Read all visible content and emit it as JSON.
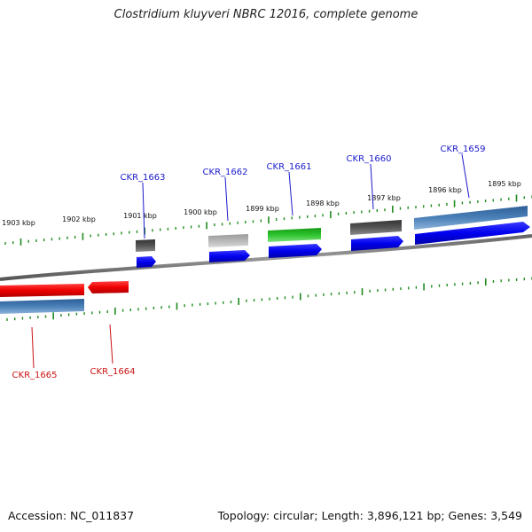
{
  "title": "Clostridium kluyveri NBRC 12016, complete genome",
  "footer": {
    "accession": "Accession: NC_011837",
    "stats": "Topology: circular; Length: 3,896,121 bp; Genes: 3,549"
  },
  "colors": {
    "forward_label": "#1a1acc",
    "reverse_label": "#cc1111",
    "forward_cds": "#0000ee",
    "reverse_cds": "#ee0000",
    "gene_track": "#4a80b8",
    "tick": "#1f8a1f",
    "backbone": "#888888"
  },
  "ticks": [
    {
      "label": "1903 kbp"
    },
    {
      "label": "1902 kbp"
    },
    {
      "label": "1901 kbp"
    },
    {
      "label": "1900 kbp"
    },
    {
      "label": "1899 kbp"
    },
    {
      "label": "1898 kbp"
    },
    {
      "label": "1897 kbp"
    },
    {
      "label": "1896 kbp"
    },
    {
      "label": "1895 kbp"
    }
  ],
  "genes_forward": [
    {
      "name": "CKR_1663",
      "feature_color": "#555555"
    },
    {
      "name": "CKR_1662",
      "feature_color": "#b0b0b0"
    },
    {
      "name": "CKR_1661",
      "feature_color": "#2ec42e"
    },
    {
      "name": "CKR_1660",
      "feature_color": "#555555"
    },
    {
      "name": "CKR_1659",
      "feature_color": "#4a80b8"
    }
  ],
  "genes_reverse": [
    {
      "name": "CKR_1665"
    },
    {
      "name": "CKR_1664"
    }
  ]
}
